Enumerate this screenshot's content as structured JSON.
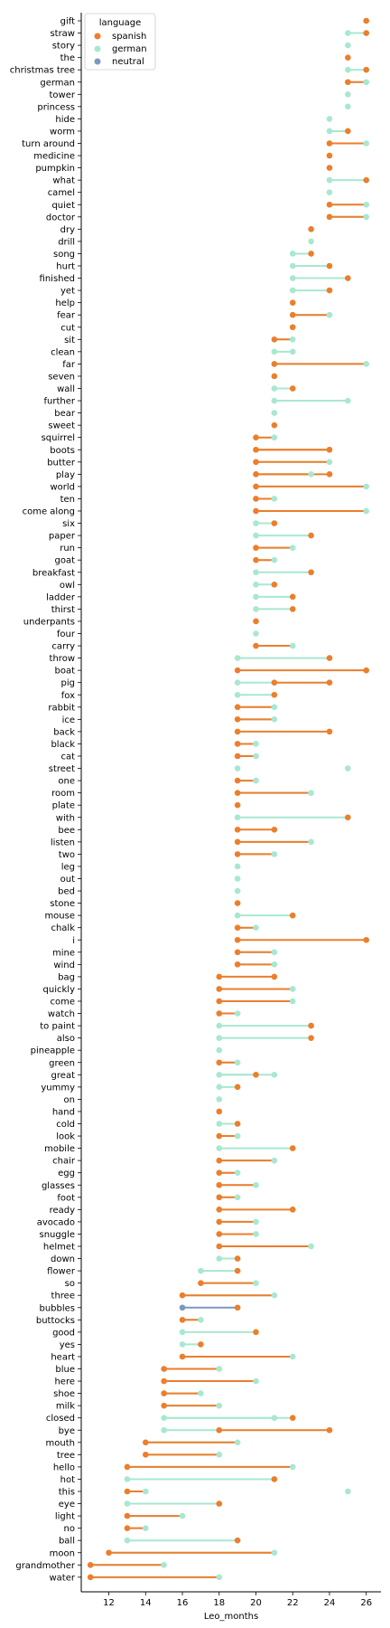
{
  "chart_data": {
    "type": "scatter",
    "xlabel": "Leo_months",
    "ylabel": "",
    "xlim": [
      10.5,
      26.8
    ],
    "xticks": [
      12,
      14,
      16,
      18,
      20,
      22,
      24,
      26
    ],
    "grid": false,
    "legend": {
      "title": "language",
      "placement": "top-left",
      "entries": [
        {
          "name": "spanish",
          "color": "#ec7e2c"
        },
        {
          "name": "german",
          "color": "#a8e8d0"
        },
        {
          "name": "neutral",
          "color": "#7d97c0"
        }
      ]
    },
    "colors": {
      "spanish": "#ec7e2c",
      "german": "#a8e8d0",
      "neutral": "#7d97c0"
    },
    "rows": [
      {
        "word": "gift",
        "spanish": 26,
        "german": null
      },
      {
        "word": "straw",
        "spanish": 26,
        "german": 25
      },
      {
        "word": "story",
        "spanish": null,
        "german": 25
      },
      {
        "word": "the",
        "spanish": 25,
        "german": null
      },
      {
        "word": "christmas tree",
        "spanish": 26,
        "german": 25
      },
      {
        "word": "german",
        "spanish": 25,
        "german": 26
      },
      {
        "word": "tower",
        "spanish": null,
        "german": 25
      },
      {
        "word": "princess",
        "spanish": null,
        "german": 25
      },
      {
        "word": "hide",
        "spanish": null,
        "german": 24
      },
      {
        "word": "worm",
        "spanish": 25,
        "german": 24
      },
      {
        "word": "turn around",
        "spanish": 24,
        "german": 26
      },
      {
        "word": "medicine",
        "spanish": 24,
        "german": null
      },
      {
        "word": "pumpkin",
        "spanish": 24,
        "german": null
      },
      {
        "word": "what",
        "spanish": 26,
        "german": 24
      },
      {
        "word": "camel",
        "spanish": null,
        "german": 24
      },
      {
        "word": "quiet",
        "spanish": 24,
        "german": 26
      },
      {
        "word": "doctor",
        "spanish": 24,
        "german": 26
      },
      {
        "word": "dry",
        "spanish": 23,
        "german": null
      },
      {
        "word": "drill",
        "spanish": null,
        "german": 23
      },
      {
        "word": "song",
        "spanish": 23,
        "german": 22
      },
      {
        "word": "hurt",
        "spanish": 24,
        "german": 22
      },
      {
        "word": "finished",
        "spanish": 25,
        "german": 22
      },
      {
        "word": "yet",
        "spanish": 24,
        "german": 22
      },
      {
        "word": "help",
        "spanish": 22,
        "german": null
      },
      {
        "word": "fear",
        "spanish": 22,
        "german": 24
      },
      {
        "word": "cut",
        "spanish": 22,
        "german": null
      },
      {
        "word": "sit",
        "spanish": 21,
        "german": 22
      },
      {
        "word": "clean",
        "spanish": null,
        "german": 21,
        "german2": 22
      },
      {
        "word": "far",
        "spanish": 21,
        "german": 26
      },
      {
        "word": "seven",
        "spanish": 21,
        "german": null
      },
      {
        "word": "wall",
        "spanish": 22,
        "german": 21
      },
      {
        "word": "further",
        "spanish": null,
        "german": 21,
        "german2": 25
      },
      {
        "word": "bear",
        "spanish": null,
        "german": 21
      },
      {
        "word": "sweet",
        "spanish": 21,
        "german": null
      },
      {
        "word": "squirrel",
        "spanish": 20,
        "german": 21
      },
      {
        "word": "boots",
        "spanish": 20,
        "german": 24,
        "spanish2": 24
      },
      {
        "word": "butter",
        "spanish": 20,
        "german": 24
      },
      {
        "word": "play",
        "spanish": 20,
        "german": 23,
        "spanish2": 24
      },
      {
        "word": "world",
        "spanish": 20,
        "german": 26
      },
      {
        "word": "ten",
        "spanish": 20,
        "german": 21
      },
      {
        "word": "come along",
        "spanish": 20,
        "german": 26
      },
      {
        "word": "six",
        "spanish": 21,
        "german": 20
      },
      {
        "word": "paper",
        "spanish": 23,
        "german": 20
      },
      {
        "word": "run",
        "spanish": 20,
        "german": 22
      },
      {
        "word": "goat",
        "spanish": 20,
        "german": 21
      },
      {
        "word": "breakfast",
        "spanish": 23,
        "german": 20
      },
      {
        "word": "owl",
        "spanish": 21,
        "german": 20
      },
      {
        "word": "ladder",
        "spanish": 22,
        "german": 20
      },
      {
        "word": "thirst",
        "spanish": 22,
        "german": 20
      },
      {
        "word": "underpants",
        "spanish": 20,
        "german": null
      },
      {
        "word": "four",
        "spanish": null,
        "german": 20
      },
      {
        "word": "carry",
        "spanish": 20,
        "german": 22
      },
      {
        "word": "throw",
        "spanish": 24,
        "german": 19
      },
      {
        "word": "boat",
        "spanish": 19,
        "german": null,
        "spanish2": 26
      },
      {
        "word": "pig",
        "spanish": 21,
        "german": 19,
        "spanish2": 24
      },
      {
        "word": "fox",
        "spanish": 21,
        "german": 19
      },
      {
        "word": "rabbit",
        "spanish": 19,
        "german": 21
      },
      {
        "word": "ice",
        "spanish": 19,
        "german": 21
      },
      {
        "word": "back",
        "spanish": 19,
        "german": null,
        "spanish2": 24
      },
      {
        "word": "black",
        "spanish": 19,
        "german": 20
      },
      {
        "word": "cat",
        "spanish": 19,
        "german": 20
      },
      {
        "word": "street",
        "spanish": null,
        "german": 19,
        "german_only": 25
      },
      {
        "word": "one",
        "spanish": 19,
        "german": 20
      },
      {
        "word": "room",
        "spanish": 19,
        "german": 23
      },
      {
        "word": "plate",
        "spanish": 19,
        "german": null
      },
      {
        "word": "with",
        "spanish": 25,
        "german": 19
      },
      {
        "word": "bee",
        "spanish": 19,
        "german": null,
        "spanish2": 21
      },
      {
        "word": "listen",
        "spanish": 19,
        "german": 23
      },
      {
        "word": "two",
        "spanish": 19,
        "german": 21
      },
      {
        "word": "leg",
        "spanish": null,
        "german": 19
      },
      {
        "word": "out",
        "spanish": null,
        "german": 19
      },
      {
        "word": "bed",
        "spanish": null,
        "german": 19
      },
      {
        "word": "stone",
        "spanish": 19,
        "german": null
      },
      {
        "word": "mouse",
        "spanish": 22,
        "german": 19
      },
      {
        "word": "chalk",
        "spanish": 19,
        "german": 20
      },
      {
        "word": "i",
        "spanish": 19,
        "german": null,
        "spanish2": 26
      },
      {
        "word": "mine",
        "spanish": 19,
        "german": 21
      },
      {
        "word": "wind",
        "spanish": 19,
        "german": 21
      },
      {
        "word": "bag",
        "spanish": 18,
        "german": null,
        "spanish2": 21
      },
      {
        "word": "quickly",
        "spanish": 18,
        "german": 22
      },
      {
        "word": "come",
        "spanish": 18,
        "german": 22
      },
      {
        "word": "watch",
        "spanish": 18,
        "german": 19
      },
      {
        "word": "to paint",
        "spanish": 23,
        "german": 18
      },
      {
        "word": "also",
        "spanish": 23,
        "german": 18
      },
      {
        "word": "pineapple",
        "spanish": null,
        "german": 18
      },
      {
        "word": "green",
        "spanish": 18,
        "german": 19
      },
      {
        "word": "great",
        "spanish": 20,
        "german": 18,
        "german2": 21
      },
      {
        "word": "yummy",
        "spanish": 19,
        "german": 18
      },
      {
        "word": "on",
        "spanish": null,
        "german": 18
      },
      {
        "word": "hand",
        "spanish": 18,
        "german": null
      },
      {
        "word": "cold",
        "spanish": 19,
        "german": 18
      },
      {
        "word": "look",
        "spanish": 18,
        "german": 19
      },
      {
        "word": "mobile",
        "spanish": 22,
        "german": 18
      },
      {
        "word": "chair",
        "spanish": 18,
        "german": 21
      },
      {
        "word": "egg",
        "spanish": 18,
        "german": 19
      },
      {
        "word": "glasses",
        "spanish": 18,
        "german": 20
      },
      {
        "word": "foot",
        "spanish": 18,
        "german": 19
      },
      {
        "word": "ready",
        "spanish": 18,
        "german": null,
        "spanish2": 22
      },
      {
        "word": "avocado",
        "spanish": 18,
        "german": 20
      },
      {
        "word": "snuggle",
        "spanish": 18,
        "german": 20
      },
      {
        "word": "helmet",
        "spanish": 18,
        "german": 23
      },
      {
        "word": "down",
        "spanish": 19,
        "german": 18
      },
      {
        "word": "flower",
        "spanish": 19,
        "german": 17
      },
      {
        "word": "so",
        "spanish": 17,
        "german": 20
      },
      {
        "word": "three",
        "spanish": 16,
        "german": 21
      },
      {
        "word": "bubbles",
        "spanish": null,
        "german": null,
        "neutral": [
          16,
          19
        ]
      },
      {
        "word": "buttocks",
        "spanish": 16,
        "german": 17
      },
      {
        "word": "good",
        "spanish": 20,
        "german": 16
      },
      {
        "word": "yes",
        "spanish": 17,
        "german": 16
      },
      {
        "word": "heart",
        "spanish": 16,
        "german": 22
      },
      {
        "word": "blue",
        "spanish": 15,
        "german": 18
      },
      {
        "word": "here",
        "spanish": 15,
        "german": 20
      },
      {
        "word": "shoe",
        "spanish": 15,
        "german": 17
      },
      {
        "word": "milk",
        "spanish": 15,
        "german": 18
      },
      {
        "word": "closed",
        "spanish": 22,
        "german": 15,
        "german2": 21
      },
      {
        "word": "bye",
        "spanish": 18,
        "german": 15,
        "spanish2": 24
      },
      {
        "word": "mouth",
        "spanish": 14,
        "german": 19
      },
      {
        "word": "tree",
        "spanish": 14,
        "german": 18
      },
      {
        "word": "hello",
        "spanish": 13,
        "german": 22
      },
      {
        "word": "hot",
        "spanish": 21,
        "german": 13
      },
      {
        "word": "this",
        "spanish": 13,
        "german": 14,
        "german_only": 25
      },
      {
        "word": "eye",
        "spanish": 18,
        "german": 13
      },
      {
        "word": "light",
        "spanish": 13,
        "german": 16
      },
      {
        "word": "no",
        "spanish": 13,
        "german": 14
      },
      {
        "word": "ball",
        "spanish": 19,
        "german": 13
      },
      {
        "word": "moon",
        "spanish": 12,
        "german": 21
      },
      {
        "word": "grandmother",
        "spanish": 11,
        "german": 15
      },
      {
        "word": "water",
        "spanish": 11,
        "german": 18
      }
    ]
  }
}
